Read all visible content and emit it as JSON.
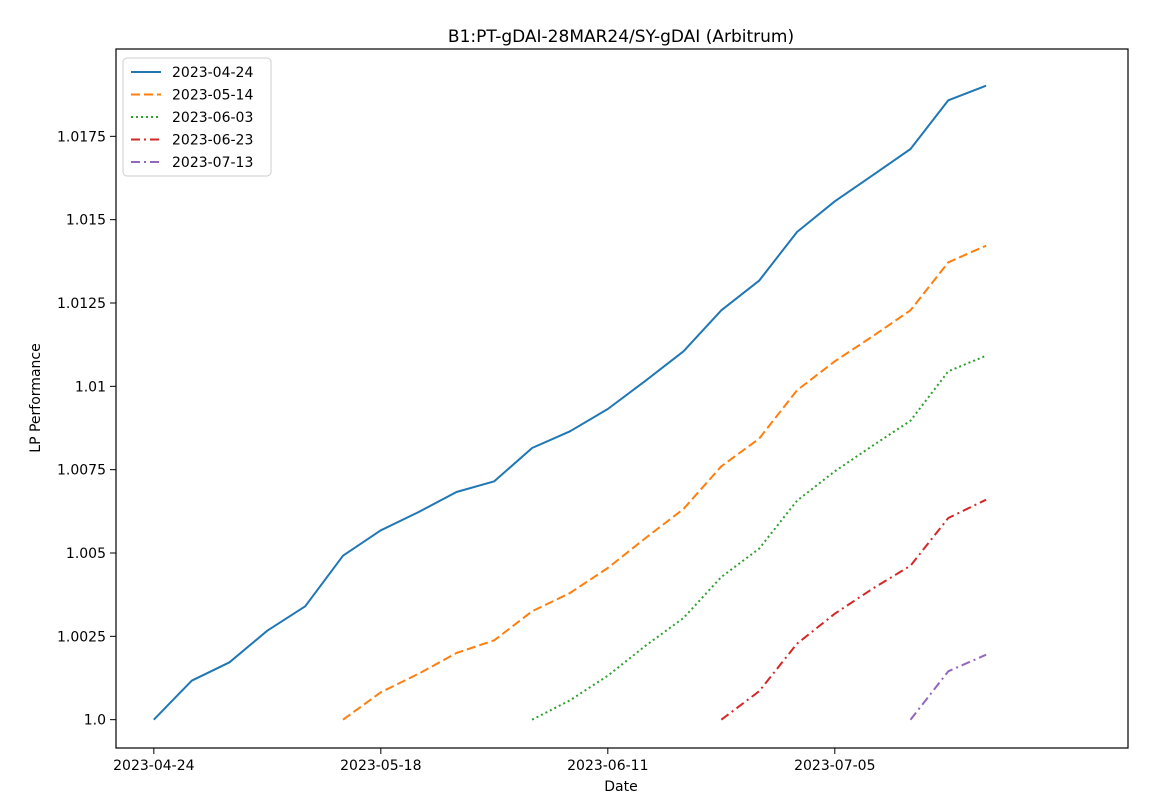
{
  "chart_data": {
    "type": "line",
    "title": "B1:PT-gDAI-28MAR24/SY-gDAI (Arbitrum)",
    "xlabel": "Date",
    "ylabel": "LP Performance",
    "x_ticks": [
      "2023-04-24",
      "2023-05-18",
      "2023-06-11",
      "2023-07-05"
    ],
    "y_ticks": [
      "1.0",
      "1.0025",
      "1.005",
      "1.0075",
      "1.01",
      "1.0125",
      "1.015",
      "1.0175"
    ],
    "xlim": [
      "2023-04-20",
      "2023-08-05"
    ],
    "ylim": [
      0.99915,
      1.02012
    ],
    "grid": false,
    "legend_position": "top-left",
    "series": [
      {
        "name": "2023-04-24",
        "color": "#1f77b4",
        "dash": "solid",
        "x": [
          "2023-04-24",
          "2023-04-28",
          "2023-05-02",
          "2023-05-06",
          "2023-05-10",
          "2023-05-14",
          "2023-05-18",
          "2023-05-22",
          "2023-05-26",
          "2023-05-30",
          "2023-06-03",
          "2023-06-07",
          "2023-06-11",
          "2023-06-15",
          "2023-06-19",
          "2023-06-23",
          "2023-06-27",
          "2023-07-01",
          "2023-07-05",
          "2023-07-09",
          "2023-07-13",
          "2023-07-17",
          "2023-07-21"
        ],
        "y": [
          1.0,
          1.00117,
          1.00172,
          1.00267,
          1.0034,
          1.00492,
          1.00568,
          1.00623,
          1.00683,
          1.00715,
          1.00815,
          1.00865,
          1.00932,
          1.01017,
          1.01105,
          1.01228,
          1.01317,
          1.01463,
          1.01555,
          1.01633,
          1.01712,
          1.01858,
          1.01902
        ]
      },
      {
        "name": "2023-05-14",
        "color": "#ff7f0e",
        "dash": "dashed",
        "x": [
          "2023-05-14",
          "2023-05-18",
          "2023-05-22",
          "2023-05-26",
          "2023-05-30",
          "2023-06-03",
          "2023-06-07",
          "2023-06-11",
          "2023-06-15",
          "2023-06-19",
          "2023-06-23",
          "2023-06-27",
          "2023-07-01",
          "2023-07-05",
          "2023-07-09",
          "2023-07-13",
          "2023-07-17",
          "2023-07-21"
        ],
        "y": [
          1.0,
          1.00082,
          1.00138,
          1.002,
          1.00238,
          1.00325,
          1.0038,
          1.00455,
          1.00545,
          1.00632,
          1.0076,
          1.00843,
          1.00988,
          1.01075,
          1.0115,
          1.01228,
          1.01372,
          1.01422
        ]
      },
      {
        "name": "2023-06-03",
        "color": "#2ca02c",
        "dash": "dotted",
        "x": [
          "2023-06-03",
          "2023-06-07",
          "2023-06-11",
          "2023-06-15",
          "2023-06-19",
          "2023-06-23",
          "2023-06-27",
          "2023-07-01",
          "2023-07-05",
          "2023-07-09",
          "2023-07-13",
          "2023-07-17",
          "2023-07-21"
        ],
        "y": [
          1.0,
          1.00058,
          1.00132,
          1.00222,
          1.00305,
          1.00428,
          1.00513,
          1.00657,
          1.00745,
          1.00822,
          1.00897,
          1.01045,
          1.01092
        ]
      },
      {
        "name": "2023-06-23",
        "color": "#d62728",
        "dash": "dashdot",
        "x": [
          "2023-06-23",
          "2023-06-27",
          "2023-07-01",
          "2023-07-05",
          "2023-07-09",
          "2023-07-13",
          "2023-07-17",
          "2023-07-21"
        ],
        "y": [
          1.0,
          1.00085,
          1.00228,
          1.00318,
          1.00393,
          1.00462,
          1.00605,
          1.0066
        ]
      },
      {
        "name": "2023-07-13",
        "color": "#9467bd",
        "dash": "dashdot",
        "x": [
          "2023-07-13",
          "2023-07-17",
          "2023-07-21"
        ],
        "y": [
          1.0,
          1.00145,
          1.00195
        ]
      }
    ]
  }
}
